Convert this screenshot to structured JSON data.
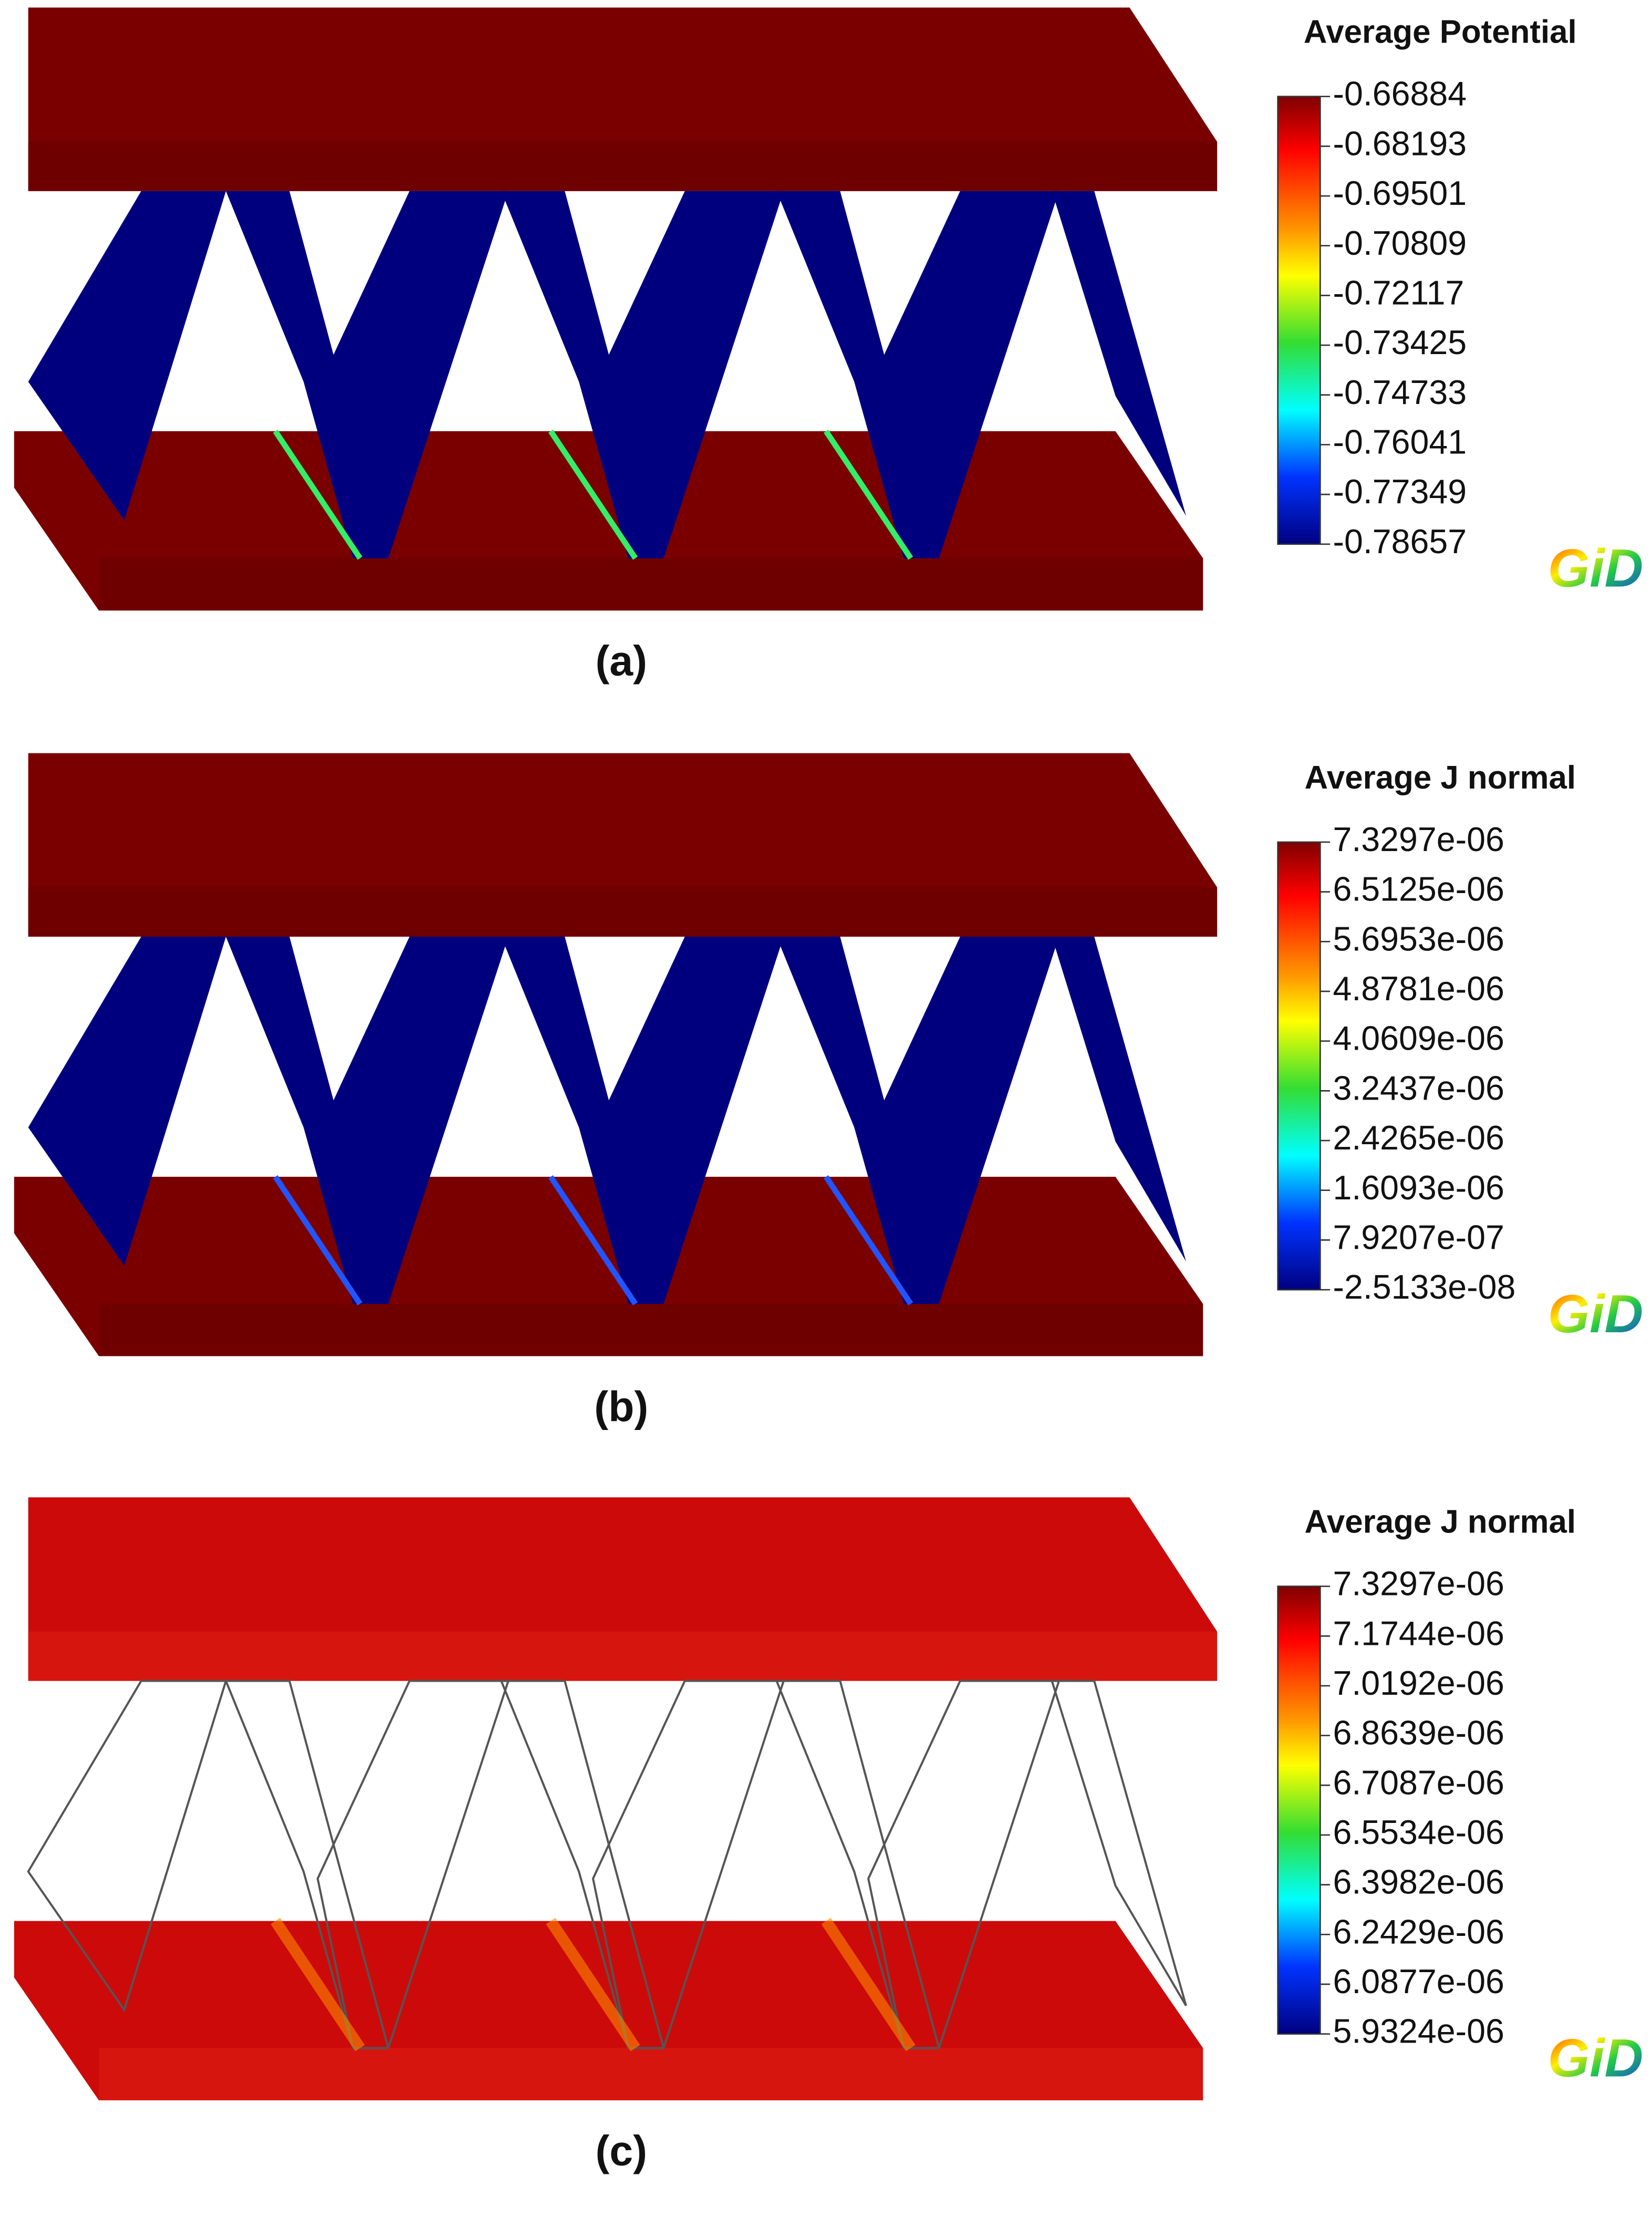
{
  "panels": [
    {
      "caption": "(a)",
      "legend": {
        "title": "Average Potential",
        "labels": [
          "-0.66884",
          "-0.68193",
          "-0.69501",
          "-0.70809",
          "-0.72117",
          "-0.73425",
          "-0.74733",
          "-0.76041",
          "-0.77349",
          "-0.78657"
        ]
      },
      "logo": "GiD"
    },
    {
      "caption": "(b)",
      "legend": {
        "title": "Average J normal",
        "labels": [
          "7.3297e-06",
          "6.5125e-06",
          "5.6953e-06",
          "4.8781e-06",
          "4.0609e-06",
          "3.2437e-06",
          "2.4265e-06",
          "1.6093e-06",
          "7.9207e-07",
          "-2.5133e-08"
        ]
      },
      "logo": "GiD"
    },
    {
      "caption": "(c)",
      "legend": {
        "title": "Average J normal",
        "labels": [
          "7.3297e-06",
          "7.1744e-06",
          "7.0192e-06",
          "6.8639e-06",
          "6.7087e-06",
          "6.5534e-06",
          "6.3982e-06",
          "6.2429e-06",
          "6.0877e-06",
          "5.9324e-06"
        ]
      },
      "logo": "GiD"
    }
  ]
}
